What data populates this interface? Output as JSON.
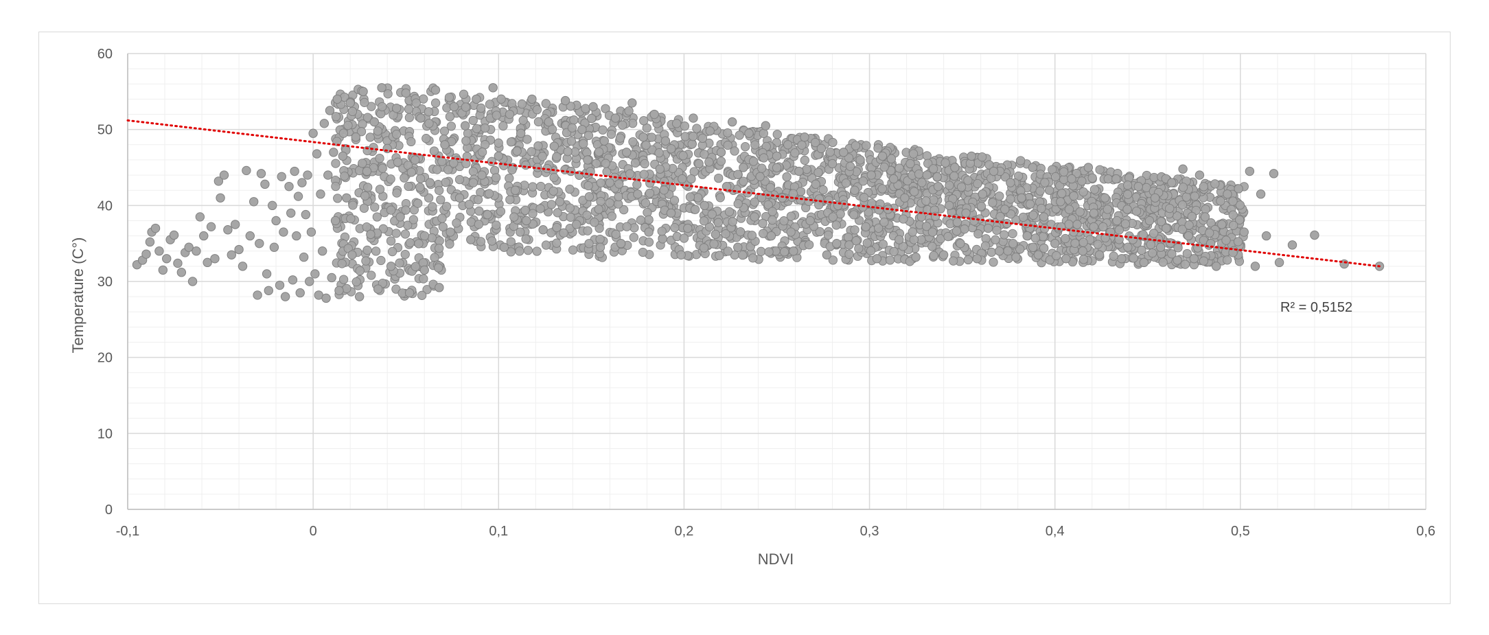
{
  "chart_data": {
    "type": "scatter",
    "title": "",
    "xlabel": "NDVI",
    "ylabel": "Temperature (C°)",
    "xlim": [
      -0.1,
      0.6
    ],
    "ylim": [
      0,
      60
    ],
    "x_ticks": [
      -0.1,
      0,
      0.1,
      0.2,
      0.3,
      0.4,
      0.5,
      0.6
    ],
    "x_tick_labels": [
      "-0,1",
      "0",
      "0,1",
      "0,2",
      "0,3",
      "0,4",
      "0,5",
      "0,6"
    ],
    "y_ticks": [
      0,
      10,
      20,
      30,
      40,
      50,
      60
    ],
    "y_tick_labels": [
      "0",
      "10",
      "20",
      "30",
      "40",
      "50",
      "60"
    ],
    "grid": true,
    "minor_grid": true,
    "legend": "none",
    "marker_color": "#a6a6a6",
    "marker_edge_color": "#808080",
    "trendline": {
      "type": "linear",
      "x": [
        -0.1,
        0.575
      ],
      "y": [
        51.2,
        32.0
      ],
      "color": "#e00000",
      "style": "dotted",
      "r_squared_label": "R² = 0,5152"
    },
    "series": [
      {
        "description": "dense point cloud",
        "points": [
          [
            -0.095,
            32.2
          ],
          [
            -0.092,
            32.8
          ],
          [
            -0.09,
            33.6
          ],
          [
            -0.088,
            35.2
          ],
          [
            -0.087,
            36.5
          ],
          [
            -0.085,
            37.0
          ],
          [
            -0.083,
            34.0
          ],
          [
            -0.081,
            31.5
          ],
          [
            -0.079,
            33.0
          ],
          [
            -0.077,
            35.5
          ],
          [
            -0.075,
            36.1
          ],
          [
            -0.073,
            32.4
          ],
          [
            -0.071,
            31.2
          ],
          [
            -0.069,
            33.8
          ],
          [
            -0.067,
            34.5
          ],
          [
            -0.065,
            30.0
          ],
          [
            -0.063,
            34.0
          ],
          [
            -0.061,
            38.5
          ],
          [
            -0.059,
            36.0
          ],
          [
            -0.057,
            32.5
          ],
          [
            -0.055,
            37.2
          ],
          [
            -0.053,
            33.0
          ],
          [
            -0.051,
            43.2
          ],
          [
            -0.05,
            41.0
          ],
          [
            -0.048,
            44.0
          ],
          [
            -0.046,
            36.8
          ],
          [
            -0.044,
            33.5
          ],
          [
            -0.042,
            37.5
          ],
          [
            -0.04,
            34.2
          ],
          [
            -0.038,
            32.0
          ],
          [
            -0.036,
            44.6
          ],
          [
            -0.034,
            36.0
          ],
          [
            -0.032,
            40.5
          ],
          [
            -0.03,
            28.2
          ],
          [
            -0.029,
            35.0
          ],
          [
            -0.028,
            44.2
          ],
          [
            -0.026,
            42.8
          ],
          [
            -0.025,
            31.0
          ],
          [
            -0.024,
            28.8
          ],
          [
            -0.022,
            40.0
          ],
          [
            -0.021,
            34.5
          ],
          [
            -0.02,
            38.0
          ],
          [
            -0.018,
            29.5
          ],
          [
            -0.017,
            43.8
          ],
          [
            -0.016,
            36.5
          ],
          [
            -0.015,
            28.0
          ],
          [
            -0.013,
            42.5
          ],
          [
            -0.012,
            39.0
          ],
          [
            -0.011,
            30.2
          ],
          [
            -0.01,
            44.5
          ],
          [
            -0.009,
            36.0
          ],
          [
            -0.008,
            41.2
          ],
          [
            -0.007,
            28.5
          ],
          [
            -0.006,
            43.0
          ],
          [
            -0.005,
            33.2
          ],
          [
            -0.004,
            38.8
          ],
          [
            -0.003,
            44.0
          ],
          [
            -0.002,
            30.0
          ],
          [
            -0.001,
            36.5
          ],
          [
            0.0,
            49.5
          ],
          [
            0.001,
            31.0
          ],
          [
            0.002,
            46.8
          ],
          [
            0.003,
            28.2
          ],
          [
            0.004,
            41.5
          ],
          [
            0.005,
            34.0
          ],
          [
            0.006,
            50.8
          ],
          [
            0.007,
            27.8
          ],
          [
            0.008,
            44.0
          ],
          [
            0.009,
            52.5
          ],
          [
            0.01,
            30.5
          ],
          [
            0.011,
            47.0
          ],
          [
            0.012,
            38.0
          ],
          [
            0.013,
            54.0
          ],
          [
            0.014,
            28.8
          ],
          [
            0.016,
            46.5
          ],
          [
            0.018,
            41.0
          ],
          [
            0.02,
            53.5
          ],
          [
            0.021,
            33.5
          ],
          [
            0.023,
            49.0
          ],
          [
            0.025,
            28.0
          ],
          [
            0.027,
            55.0
          ],
          [
            0.029,
            44.5
          ],
          [
            0.031,
            36.2
          ],
          [
            0.033,
            51.0
          ],
          [
            0.035,
            29.0
          ],
          [
            0.037,
            55.5
          ],
          [
            0.04,
            47.5
          ],
          [
            0.042,
            32.0
          ],
          [
            0.045,
            52.8
          ],
          [
            0.047,
            38.5
          ],
          [
            0.05,
            54.8
          ],
          [
            0.052,
            28.5
          ],
          [
            0.055,
            46.0
          ],
          [
            0.058,
            51.5
          ],
          [
            0.06,
            31.5
          ],
          [
            0.063,
            43.0
          ],
          [
            0.066,
            55.2
          ],
          [
            0.068,
            29.2
          ],
          [
            0.071,
            48.0
          ],
          [
            0.074,
            36.5
          ],
          [
            0.076,
            53.0
          ],
          [
            0.079,
            41.0
          ],
          [
            0.082,
            50.5
          ],
          [
            0.085,
            35.5
          ],
          [
            0.088,
            54.0
          ],
          [
            0.091,
            44.0
          ],
          [
            0.094,
            38.8
          ],
          [
            0.097,
            55.5
          ],
          [
            0.1,
            46.5
          ],
          [
            0.103,
            34.5
          ],
          [
            0.106,
            52.0
          ],
          [
            0.109,
            42.0
          ],
          [
            0.112,
            49.5
          ],
          [
            0.115,
            38.0
          ],
          [
            0.118,
            54.0
          ],
          [
            0.121,
            45.0
          ],
          [
            0.124,
            36.8
          ],
          [
            0.127,
            51.0
          ],
          [
            0.13,
            47.8
          ],
          [
            0.133,
            40.5
          ],
          [
            0.136,
            53.8
          ],
          [
            0.139,
            44.5
          ],
          [
            0.142,
            37.5
          ],
          [
            0.145,
            50.0
          ],
          [
            0.148,
            46.0
          ],
          [
            0.151,
            53.0
          ],
          [
            0.154,
            39.5
          ],
          [
            0.157,
            48.5
          ],
          [
            0.16,
            43.0
          ],
          [
            0.163,
            51.5
          ],
          [
            0.166,
            35.0
          ],
          [
            0.169,
            47.0
          ],
          [
            0.172,
            53.5
          ],
          [
            0.175,
            41.5
          ],
          [
            0.178,
            49.0
          ],
          [
            0.181,
            36.5
          ],
          [
            0.184,
            52.0
          ],
          [
            0.187,
            44.8
          ],
          [
            0.19,
            48.5
          ],
          [
            0.193,
            39.0
          ],
          [
            0.196,
            50.8
          ],
          [
            0.199,
            43.5
          ],
          [
            0.202,
            37.0
          ],
          [
            0.205,
            51.5
          ],
          [
            0.208,
            45.5
          ],
          [
            0.211,
            40.0
          ],
          [
            0.214,
            49.8
          ],
          [
            0.217,
            36.2
          ],
          [
            0.22,
            47.0
          ],
          [
            0.223,
            42.5
          ],
          [
            0.226,
            51.0
          ],
          [
            0.229,
            34.5
          ],
          [
            0.232,
            45.0
          ],
          [
            0.235,
            49.5
          ],
          [
            0.238,
            38.5
          ],
          [
            0.241,
            43.8
          ],
          [
            0.244,
            50.5
          ],
          [
            0.247,
            36.0
          ],
          [
            0.25,
            46.5
          ],
          [
            0.253,
            41.0
          ],
          [
            0.256,
            48.0
          ],
          [
            0.259,
            34.0
          ],
          [
            0.262,
            44.5
          ],
          [
            0.265,
            49.0
          ],
          [
            0.268,
            38.0
          ],
          [
            0.271,
            42.8
          ],
          [
            0.274,
            47.5
          ],
          [
            0.277,
            33.5
          ],
          [
            0.28,
            45.5
          ],
          [
            0.283,
            40.0
          ],
          [
            0.286,
            47.0
          ],
          [
            0.289,
            34.8
          ],
          [
            0.292,
            42.0
          ],
          [
            0.295,
            46.0
          ],
          [
            0.298,
            37.2
          ],
          [
            0.301,
            44.0
          ],
          [
            0.304,
            33.0
          ],
          [
            0.307,
            46.5
          ],
          [
            0.31,
            39.5
          ],
          [
            0.313,
            43.5
          ],
          [
            0.316,
            35.5
          ],
          [
            0.319,
            41.0
          ],
          [
            0.322,
            45.5
          ],
          [
            0.325,
            33.2
          ],
          [
            0.328,
            38.5
          ],
          [
            0.331,
            44.0
          ],
          [
            0.334,
            36.5
          ],
          [
            0.337,
            42.5
          ],
          [
            0.34,
            33.5
          ],
          [
            0.343,
            40.0
          ],
          [
            0.346,
            45.0
          ],
          [
            0.349,
            35.0
          ],
          [
            0.352,
            39.0
          ],
          [
            0.355,
            46.5
          ],
          [
            0.358,
            33.0
          ],
          [
            0.361,
            41.5
          ],
          [
            0.364,
            37.0
          ],
          [
            0.367,
            44.5
          ],
          [
            0.37,
            34.0
          ],
          [
            0.373,
            39.5
          ],
          [
            0.376,
            43.0
          ],
          [
            0.379,
            33.2
          ],
          [
            0.382,
            41.0
          ],
          [
            0.385,
            36.0
          ],
          [
            0.388,
            45.0
          ],
          [
            0.391,
            33.5
          ],
          [
            0.394,
            38.5
          ],
          [
            0.397,
            42.0
          ],
          [
            0.4,
            35.0
          ],
          [
            0.403,
            40.5
          ],
          [
            0.406,
            33.0
          ],
          [
            0.409,
            43.5
          ],
          [
            0.412,
            37.5
          ],
          [
            0.415,
            34.0
          ],
          [
            0.418,
            45.0
          ],
          [
            0.421,
            39.0
          ],
          [
            0.424,
            33.5
          ],
          [
            0.427,
            41.0
          ],
          [
            0.43,
            36.5
          ],
          [
            0.433,
            43.5
          ],
          [
            0.436,
            33.0
          ],
          [
            0.439,
            39.5
          ],
          [
            0.442,
            35.5
          ],
          [
            0.445,
            42.5
          ],
          [
            0.448,
            32.5
          ],
          [
            0.451,
            38.0
          ],
          [
            0.454,
            41.0
          ],
          [
            0.457,
            34.5
          ],
          [
            0.46,
            37.0
          ],
          [
            0.463,
            43.0
          ],
          [
            0.466,
            32.8
          ],
          [
            0.469,
            44.8
          ],
          [
            0.472,
            36.0
          ],
          [
            0.475,
            33.0
          ],
          [
            0.478,
            44.0
          ],
          [
            0.481,
            38.5
          ],
          [
            0.484,
            35.0
          ],
          [
            0.487,
            32.0
          ],
          [
            0.49,
            37.5
          ],
          [
            0.493,
            41.5
          ],
          [
            0.496,
            33.8
          ],
          [
            0.499,
            42.2
          ],
          [
            0.502,
            36.5
          ],
          [
            0.505,
            44.5
          ],
          [
            0.508,
            32.0
          ],
          [
            0.511,
            41.5
          ],
          [
            0.514,
            36.0
          ],
          [
            0.518,
            44.2
          ],
          [
            0.521,
            32.5
          ],
          [
            0.528,
            34.8
          ],
          [
            0.54,
            36.1
          ],
          [
            0.556,
            32.3
          ],
          [
            0.575,
            32.0
          ]
        ]
      }
    ]
  }
}
